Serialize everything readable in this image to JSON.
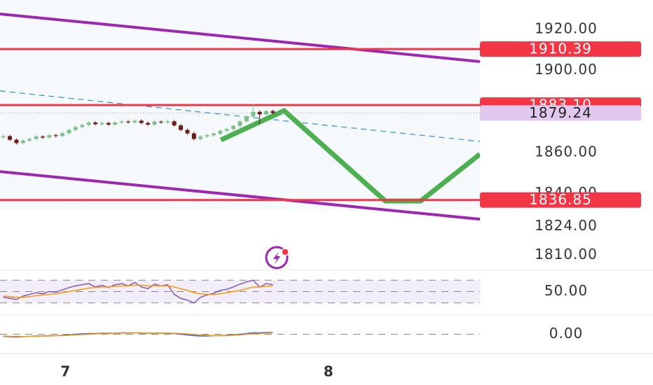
{
  "chart_data": {
    "type": "candlestick",
    "ylim": [
      1803,
      1934.3
    ],
    "yticks": [
      {
        "value": 1920,
        "label": "1920.00"
      },
      {
        "value": 1900,
        "label": "1900.00"
      },
      {
        "value": 1860,
        "label": "1860.00"
      },
      {
        "value": 1840,
        "label": "1840.00"
      },
      {
        "value": 1824,
        "label": "1824.00"
      },
      {
        "value": 1810,
        "label": "1810.00"
      }
    ],
    "xlim": [
      0,
      73
    ],
    "xticks": [
      {
        "value": 10,
        "label": "7"
      },
      {
        "value": 50,
        "label": "8"
      }
    ],
    "up_color": "#7fbf8a",
    "down_color": "#6b1a1a",
    "candles": [
      [
        1867.4,
        1868.7,
        1866.7,
        1868.0
      ],
      [
        1868.0,
        1868.7,
        1865.5,
        1866.2
      ],
      [
        1866.2,
        1866.9,
        1863.9,
        1864.6
      ],
      [
        1864.6,
        1866.5,
        1863.9,
        1865.8
      ],
      [
        1865.8,
        1867.3,
        1865.1,
        1866.6
      ],
      [
        1866.6,
        1868.5,
        1865.9,
        1867.8
      ],
      [
        1867.8,
        1868.5,
        1866.6,
        1867.3
      ],
      [
        1867.3,
        1869.1,
        1866.6,
        1868.4
      ],
      [
        1868.4,
        1869.1,
        1867.3,
        1868.0
      ],
      [
        1868.0,
        1870.1,
        1867.3,
        1869.4
      ],
      [
        1869.4,
        1871.7,
        1868.7,
        1871.0
      ],
      [
        1871.0,
        1873.1,
        1870.3,
        1872.4
      ],
      [
        1872.4,
        1874.1,
        1871.7,
        1873.4
      ],
      [
        1873.4,
        1875.3,
        1872.7,
        1874.6
      ],
      [
        1874.6,
        1875.3,
        1873.1,
        1873.8
      ],
      [
        1873.8,
        1875.1,
        1873.1,
        1874.4
      ],
      [
        1874.4,
        1875.1,
        1872.9,
        1873.6
      ],
      [
        1873.6,
        1875.3,
        1872.9,
        1874.6
      ],
      [
        1874.6,
        1875.8,
        1873.9,
        1875.1
      ],
      [
        1875.1,
        1875.8,
        1874.0,
        1874.7
      ],
      [
        1874.7,
        1876.2,
        1874.0,
        1875.5
      ],
      [
        1875.5,
        1876.2,
        1873.7,
        1874.4
      ],
      [
        1874.4,
        1875.1,
        1872.9,
        1873.6
      ],
      [
        1873.6,
        1875.7,
        1872.9,
        1875.0
      ],
      [
        1875.0,
        1875.7,
        1873.9,
        1874.6
      ],
      [
        1874.6,
        1875.9,
        1873.9,
        1875.2
      ],
      [
        1875.2,
        1875.9,
        1872.5,
        1873.2
      ],
      [
        1873.2,
        1873.9,
        1870.3,
        1871.0
      ],
      [
        1871.0,
        1871.7,
        1868.6,
        1869.3
      ],
      [
        1869.3,
        1870.0,
        1865.9,
        1866.6
      ],
      [
        1866.6,
        1868.5,
        1865.9,
        1867.8
      ],
      [
        1867.8,
        1869.1,
        1867.1,
        1868.4
      ],
      [
        1868.4,
        1869.9,
        1867.7,
        1869.2
      ],
      [
        1869.2,
        1871.3,
        1868.5,
        1870.6
      ],
      [
        1870.6,
        1872.1,
        1869.9,
        1871.4
      ],
      [
        1871.4,
        1873.7,
        1870.7,
        1873.0
      ],
      [
        1873.0,
        1875.9,
        1872.3,
        1875.2
      ],
      [
        1875.2,
        1878.3,
        1874.5,
        1877.6
      ],
      [
        1877.6,
        1883.6,
        1876.9,
        1879.8
      ],
      [
        1879.8,
        1880.5,
        1873.8,
        1878.6
      ],
      [
        1878.6,
        1880.9,
        1877.9,
        1880.2
      ],
      [
        1880.2,
        1880.9,
        1878.5,
        1879.24
      ]
    ],
    "levels": [
      1910.39,
      {
        "value": 1883.1,
        "label": "1883.10"
      },
      1836.85
    ],
    "level_color": "#f23645",
    "last_price": 1879.24,
    "last_price_color": "#e1c9ee",
    "lines": [
      {
        "x": [
          0,
          73
        ],
        "y": [
          1927.5,
          1904.3
        ],
        "color": "#9c27b0",
        "style": "solid"
      },
      {
        "x": [
          0,
          73
        ],
        "y": [
          1850.7,
          1827.5
        ],
        "color": "#9c27b0",
        "style": "solid"
      },
      {
        "x": [
          0,
          73
        ],
        "y": [
          1890,
          1865.4
        ],
        "color": "#2e8fd6",
        "style": "dashed"
      },
      {
        "x": [
          33.6,
          42.1,
          43.2,
          58.6,
          64,
          73
        ],
        "y": [
          1866.1,
          1878.7,
          1880.4,
          1836.4,
          1836.4,
          1859.2
        ],
        "color": "#4caf50",
        "style": "thick"
      }
    ],
    "rsi": {
      "ylim": [
        15,
        85
      ],
      "yticks": [
        {
          "value": 50,
          "label": "50.00"
        }
      ],
      "band": [
        30,
        70
      ],
      "series": [
        {
          "color": "#7e57c2",
          "values": [
            40,
            38,
            36,
            42,
            45,
            48,
            46,
            50,
            49,
            53,
            57,
            60,
            62,
            64,
            58,
            61,
            57,
            62,
            64,
            60,
            66,
            58,
            55,
            63,
            60,
            62,
            45,
            38,
            35,
            30,
            40,
            44,
            47,
            52,
            54,
            58,
            63,
            67,
            70,
            58,
            64,
            62
          ]
        },
        {
          "color": "#ff9800",
          "values": [
            42,
            41,
            40,
            40,
            41,
            43,
            44,
            45,
            46,
            48,
            50,
            52,
            54,
            56,
            57,
            58,
            58,
            59,
            60,
            60,
            61,
            61,
            60,
            60,
            60,
            60,
            58,
            55,
            52,
            48,
            46,
            45,
            45,
            46,
            48,
            50,
            52,
            55,
            58,
            58,
            59,
            60
          ]
        }
      ]
    },
    "macd": {
      "ylim": [
        -4.5,
        4.5
      ],
      "yticks": [
        {
          "value": 0,
          "label": "0.00"
        }
      ],
      "series": [
        {
          "color": "#2962ff",
          "values": [
            -0.6,
            -0.7,
            -0.8,
            -0.7,
            -0.6,
            -0.5,
            -0.5,
            -0.4,
            -0.4,
            -0.3,
            -0.2,
            0,
            0.1,
            0.2,
            0.2,
            0.3,
            0.3,
            0.3,
            0.4,
            0.4,
            0.4,
            0.3,
            0.3,
            0.3,
            0.3,
            0.3,
            0.2,
            0,
            -0.2,
            -0.4,
            -0.5,
            -0.5,
            -0.4,
            -0.4,
            -0.3,
            -0.2,
            0,
            0.2,
            0.4,
            0.4,
            0.5,
            0.5
          ]
        },
        {
          "color": "#ff9800",
          "values": [
            -0.5,
            -0.6,
            -0.6,
            -0.7,
            -0.6,
            -0.6,
            -0.5,
            -0.5,
            -0.4,
            -0.4,
            -0.3,
            -0.2,
            -0.1,
            0,
            0.1,
            0.2,
            0.2,
            0.3,
            0.3,
            0.3,
            0.4,
            0.4,
            0.3,
            0.3,
            0.3,
            0.3,
            0.3,
            0.2,
            0.1,
            -0.1,
            -0.2,
            -0.3,
            -0.4,
            -0.4,
            -0.4,
            -0.3,
            -0.2,
            0,
            0.1,
            0.2,
            0.3,
            0.4
          ]
        }
      ]
    }
  }
}
